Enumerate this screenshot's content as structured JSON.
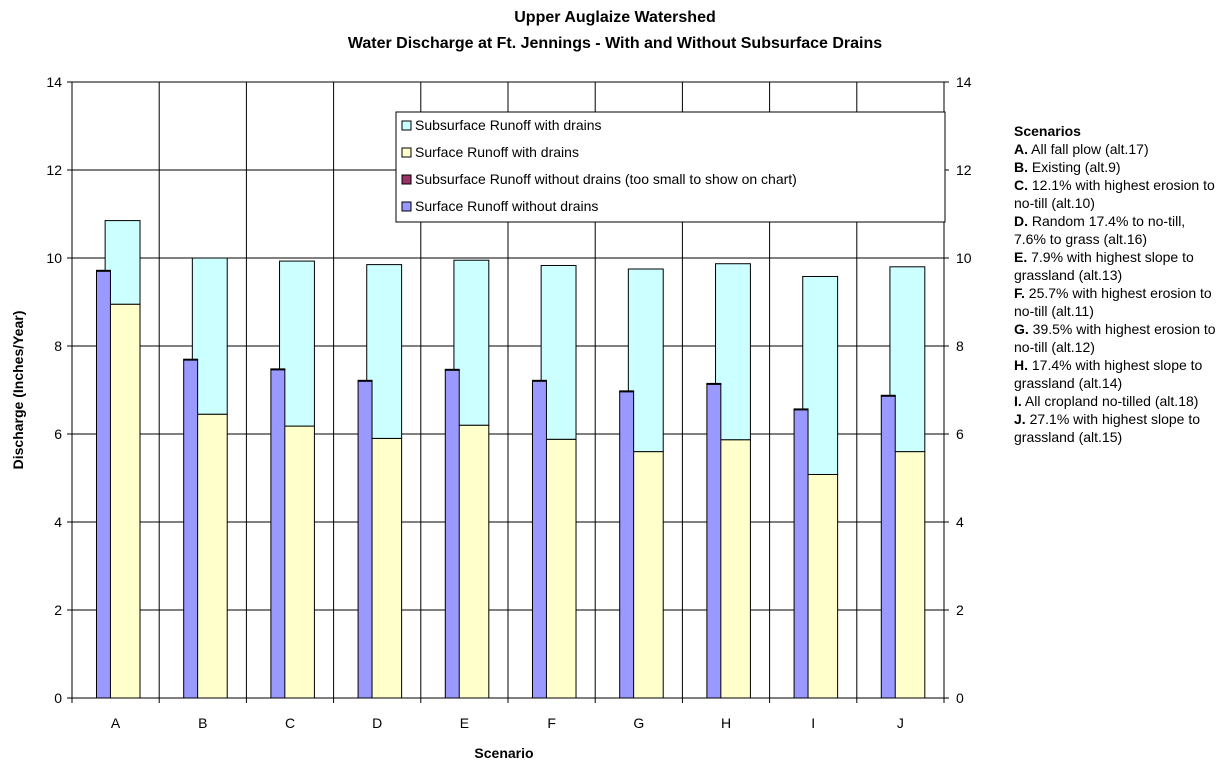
{
  "chart_data": {
    "type": "bar",
    "title_line1": "Upper Auglaize Watershed",
    "title_line2": "Water Discharge at Ft. Jennings - With and Without Subsurface Drains",
    "xlabel": "Scenario",
    "ylabel": "Discharge (Inches/Year)",
    "ylim": [
      0,
      14
    ],
    "yticks": [
      "0",
      "2",
      "4",
      "6",
      "8",
      "10",
      "12",
      "14"
    ],
    "grid": true,
    "legend_position": "top-right inside plot",
    "categories": [
      "A",
      "B",
      "C",
      "D",
      "E",
      "F",
      "G",
      "H",
      "I",
      "J"
    ],
    "series": [
      {
        "name": "Subsurface Runoff with drains",
        "color": "#ccffff",
        "stack": "with",
        "values": [
          1.9,
          3.55,
          3.75,
          3.95,
          3.75,
          3.95,
          4.15,
          4.0,
          4.5,
          4.2
        ]
      },
      {
        "name": "Surface Runoff with drains",
        "color": "#ffffcc",
        "stack": "with",
        "values": [
          8.95,
          6.45,
          6.18,
          5.9,
          6.2,
          5.88,
          5.6,
          5.87,
          5.08,
          5.6
        ]
      },
      {
        "name": "Subsurface Runoff without drains (too small to show on chart)",
        "color": "#993366",
        "stack": "without",
        "values": [
          0.02,
          0.02,
          0.02,
          0.02,
          0.02,
          0.02,
          0.02,
          0.02,
          0.02,
          0.02
        ]
      },
      {
        "name": "Surface Runoff without drains",
        "color": "#9999ff",
        "stack": "without",
        "values": [
          9.7,
          7.68,
          7.46,
          7.2,
          7.45,
          7.2,
          6.96,
          7.13,
          6.55,
          6.86
        ]
      }
    ]
  },
  "scenarios_panel": {
    "heading": "Scenarios",
    "items": [
      {
        "key": "A.",
        "text": "All fall plow (alt.17)"
      },
      {
        "key": "B.",
        "text": "Existing (alt.9)"
      },
      {
        "key": "C.",
        "text": "12.1% with highest erosion to no-till (alt.10)"
      },
      {
        "key": "D.",
        "text": "Random 17.4% to no-till, 7.6% to grass (alt.16)"
      },
      {
        "key": "E.",
        "text": "7.9% with highest slope to grassland (alt.13)"
      },
      {
        "key": "F.",
        "text": "25.7% with highest erosion to no-till (alt.11)"
      },
      {
        "key": "G.",
        "text": "39.5% with highest erosion to no-till (alt.12)"
      },
      {
        "key": "H.",
        "text": "17.4% with highest slope to grassland (alt.14)"
      },
      {
        "key": "I.",
        "text": "All cropland no-tilled (alt.18)"
      },
      {
        "key": "J.",
        "text": "27.1% with highest slope to grassland (alt.15)"
      }
    ]
  }
}
